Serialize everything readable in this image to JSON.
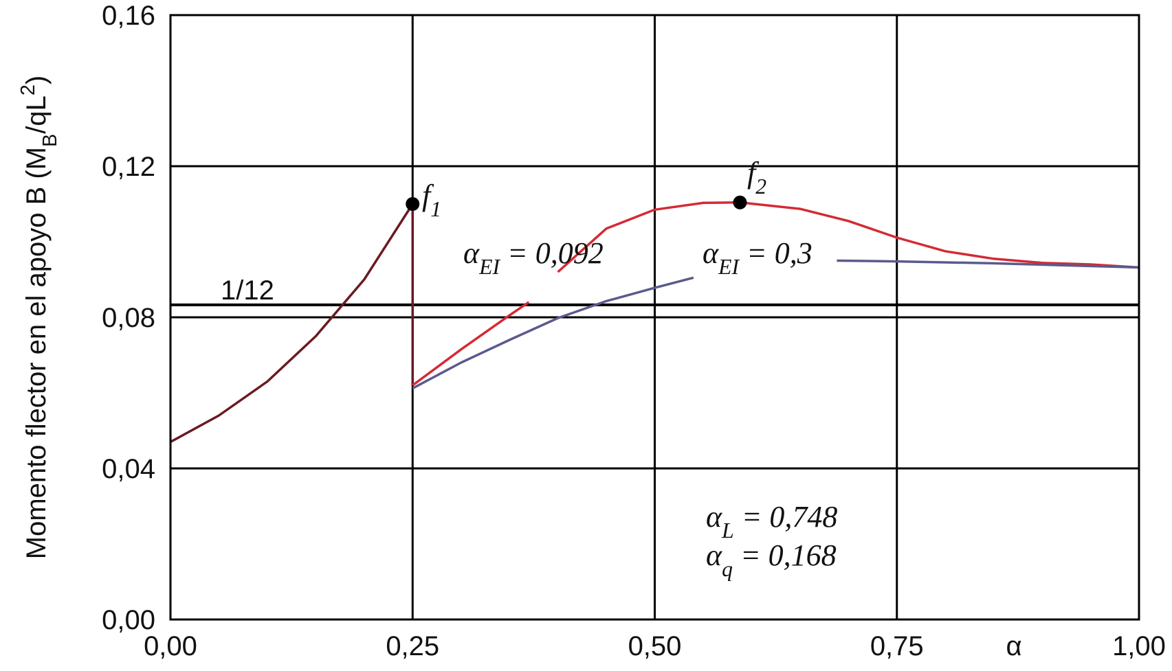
{
  "chart_data": {
    "type": "line",
    "ylabel": {
      "text": "Momento flector en el apoyo B (M",
      "sub": "B",
      "mid": "/qL",
      "sup": "2",
      "rest": ")"
    },
    "xlabel": "α",
    "xlim": [
      0,
      1
    ],
    "ylim": [
      0,
      0.16
    ],
    "xticks": [
      {
        "value": 0,
        "label": "0,00"
      },
      {
        "value": 0.25,
        "label": "0,25"
      },
      {
        "value": 0.5,
        "label": "0,50"
      },
      {
        "value": 0.75,
        "label": "0,75"
      },
      {
        "value": 1,
        "label": "1,00"
      }
    ],
    "yticks": [
      {
        "value": 0,
        "label": "0,00"
      },
      {
        "value": 0.04,
        "label": "0,04"
      },
      {
        "value": 0.08,
        "label": "0,08"
      },
      {
        "value": 0.12,
        "label": "0,12"
      },
      {
        "value": 0.16,
        "label": "0,16"
      }
    ],
    "grid": true,
    "reference_line": {
      "value": 0.0833,
      "label": "1/12"
    },
    "series": [
      {
        "color": "#6b1a22",
        "x": [
          0,
          0.05,
          0.1,
          0.15,
          0.2,
          0.25,
          0.25
        ],
        "values": [
          0.047,
          0.054,
          0.063,
          0.075,
          0.09,
          0.11,
          0.062
        ]
      },
      {
        "name": {
          "text": "α",
          "sub": "EI",
          "rest": " = 0,092"
        },
        "color": "#d42a34",
        "x": [
          0.25,
          0.3,
          0.35,
          0.37,
          0.385,
          0.4,
          0.45,
          0.5,
          0.55,
          0.588,
          0.65,
          0.7,
          0.75,
          0.8,
          0.85,
          0.9,
          0.95,
          1.0
        ],
        "values": [
          0.062,
          0.0715,
          0.0805,
          0.084,
          null,
          0.092,
          0.1035,
          0.1085,
          0.1103,
          0.1104,
          0.1087,
          0.1055,
          0.1011,
          0.0975,
          0.0955,
          0.0944,
          0.094,
          0.0932
        ]
      },
      {
        "name": {
          "text": "α",
          "sub": "EI",
          "rest": " = 0,3"
        },
        "color": "#5a5a8e",
        "x": [
          0.25,
          0.3,
          0.35,
          0.4,
          0.45,
          0.5,
          0.54,
          0.6,
          0.688,
          0.75,
          0.85,
          1.0
        ],
        "values": [
          0.0612,
          0.068,
          0.074,
          0.0798,
          0.0843,
          0.0878,
          0.0905,
          null,
          0.095,
          0.0948,
          0.0943,
          0.0932
        ]
      }
    ],
    "points": [
      {
        "label": {
          "text": "f",
          "sub": "1"
        },
        "x": 0.25,
        "y": 0.11
      },
      {
        "label": {
          "text": "f",
          "sub": "2"
        },
        "x": 0.588,
        "y": 0.1104
      }
    ],
    "annotations": [
      {
        "text": "α",
        "sub": "L",
        "rest": " = 0,748"
      },
      {
        "text": "α",
        "sub": "q",
        "rest": " = 0,168"
      }
    ]
  }
}
